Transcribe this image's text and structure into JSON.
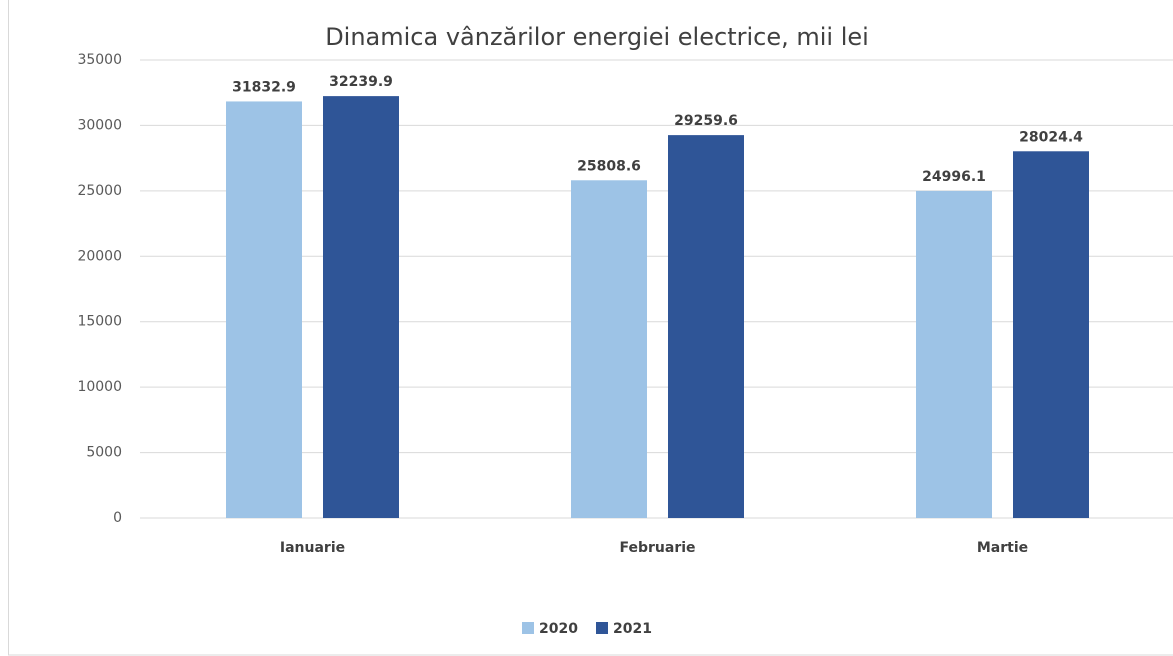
{
  "chart_data": {
    "type": "bar",
    "title": "Dinamica vânzărilor energiei electrice, mii lei",
    "categories": [
      "Ianuarie",
      "Februarie",
      "Martie"
    ],
    "series": [
      {
        "name": "2020",
        "color": "#9dc3e6",
        "values": [
          31832.9,
          25808.6,
          24996.1
        ]
      },
      {
        "name": "2021",
        "color": "#2f5597",
        "values": [
          32239.9,
          29259.6,
          28024.4
        ]
      }
    ],
    "ylim": [
      0,
      35000
    ],
    "yticks": [
      0,
      5000,
      10000,
      15000,
      20000,
      25000,
      30000,
      35000
    ],
    "grid": true,
    "legend": "bottom"
  }
}
